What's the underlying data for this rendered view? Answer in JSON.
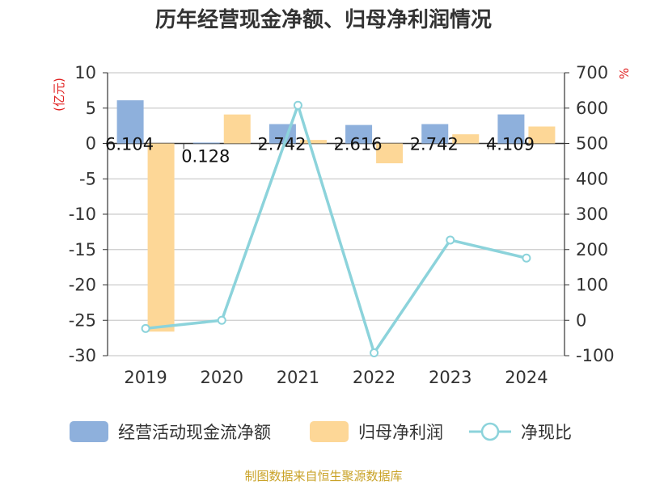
{
  "chart_data": {
    "type": "bar",
    "title": "历年经营现金净额、归母净利润情况",
    "categories": [
      "2019",
      "2020",
      "2021",
      "2022",
      "2023",
      "2024"
    ],
    "series": [
      {
        "name": "经营活动现金流净额",
        "type": "bar",
        "axis": "left",
        "color": "#8eb0dc",
        "values": [
          6.104,
          0.128,
          2.742,
          2.616,
          2.742,
          4.109
        ]
      },
      {
        "name": "归母净利润",
        "type": "bar",
        "axis": "left",
        "color": "#fdd797",
        "values": [
          -26.6,
          4.1,
          0.5,
          -2.8,
          1.3,
          2.4
        ]
      },
      {
        "name": "净现比",
        "type": "line",
        "axis": "right",
        "color": "#8cd3db",
        "values": [
          -23,
          0,
          608,
          -92,
          227,
          176
        ]
      }
    ],
    "data_labels": [
      "6.104",
      "0.128",
      "2.742",
      "2.616",
      "2.742",
      "4.109"
    ],
    "left_axis": {
      "unit": "(亿元)",
      "ticks": [
        "10",
        "5",
        "0",
        "-5",
        "-10",
        "-15",
        "-20",
        "-25",
        "-30"
      ],
      "min": -30,
      "max": 10
    },
    "right_axis": {
      "unit": "%",
      "ticks": [
        "700",
        "600",
        "500",
        "400",
        "300",
        "200",
        "100",
        "0",
        "-100"
      ],
      "min": -100,
      "max": 700
    },
    "grid": true,
    "legend_position": "bottom",
    "source": "制图数据来自恒生聚源数据库"
  }
}
